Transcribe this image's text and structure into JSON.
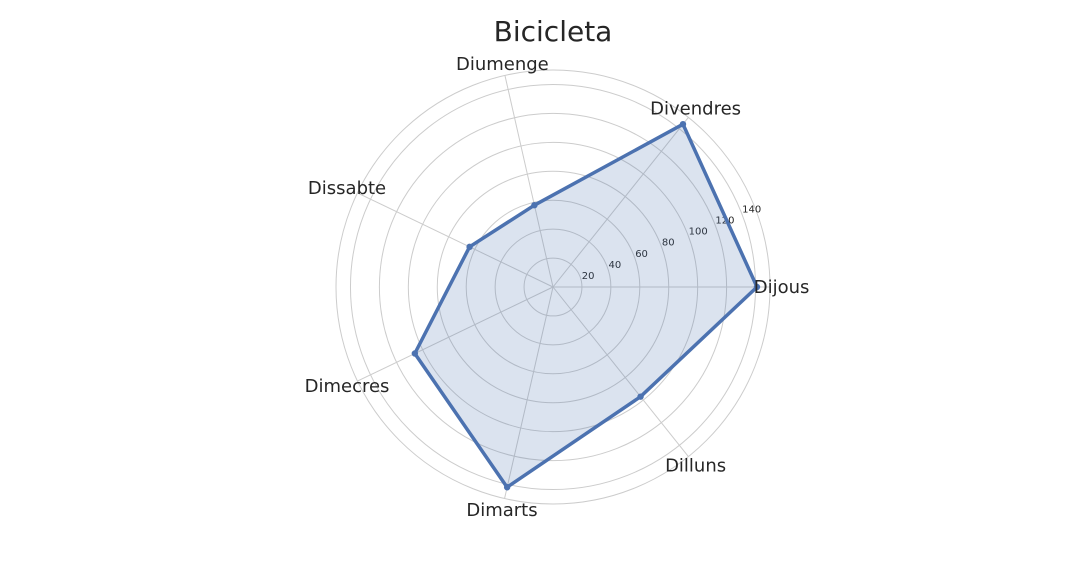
{
  "chart_data": {
    "type": "radar",
    "title": "Bicicleta",
    "categories": [
      "Dijous",
      "Divendres",
      "Diumenge",
      "Dissabte",
      "Dimecres",
      "Dimarts",
      "Dilluns"
    ],
    "angles_deg": [
      0,
      51.4,
      102.8,
      154.3,
      205.7,
      257.1,
      308.6
    ],
    "series": [
      {
        "values": [
          141,
          144,
          58,
          64,
          106,
          142,
          97
        ]
      }
    ],
    "r_ticks": [
      20,
      40,
      60,
      80,
      100,
      120,
      140
    ],
    "r_max": 150,
    "grid": true,
    "line_color": "#4c72b0",
    "fill_color": "#4c72b0",
    "grid_color": "#cccccc"
  }
}
